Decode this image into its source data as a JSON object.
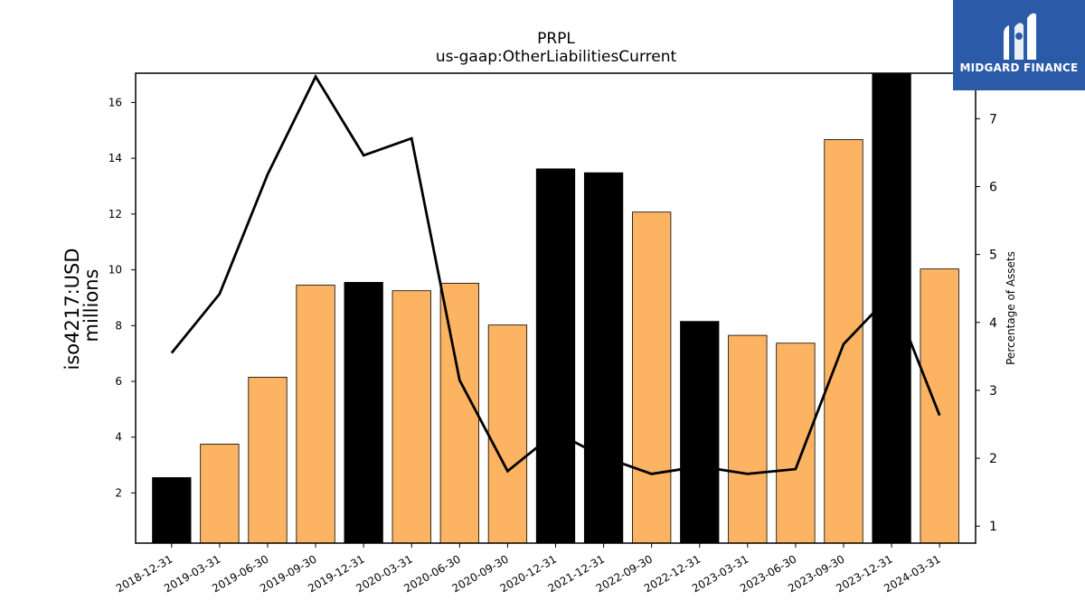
{
  "chart_data": {
    "type": "bar",
    "title": "PRPL",
    "subtitle": "us-gaap:OtherLiabilitiesCurrent",
    "ylabel": "iso4217:USD",
    "ylabel_unit": "millions",
    "y2label": "Percentage of Assets",
    "categories": [
      "2018-12-31",
      "2019-03-31",
      "2019-06-30",
      "2019-09-30",
      "2019-12-31",
      "2020-03-31",
      "2020-06-30",
      "2020-09-30",
      "2020-12-31",
      "2021-12-31",
      "2022-09-30",
      "2022-12-31",
      "2023-03-31",
      "2023-06-30",
      "2023-09-30",
      "2023-12-31",
      "2024-03-31"
    ],
    "values": [
      2.55,
      3.75,
      6.15,
      9.45,
      9.55,
      9.25,
      9.52,
      8.02,
      13.62,
      13.48,
      12.07,
      8.15,
      7.65,
      7.37,
      14.67,
      17.05,
      10.03
    ],
    "bar_colors": [
      "#000000",
      "#fdb462",
      "#fdb462",
      "#fdb462",
      "#000000",
      "#fdb462",
      "#fdb462",
      "#fdb462",
      "#000000",
      "#000000",
      "#fdb462",
      "#000000",
      "#fdb462",
      "#fdb462",
      "#fdb462",
      "#000000",
      "#fdb462"
    ],
    "line_values": [
      3.55,
      4.42,
      6.18,
      7.62,
      6.46,
      6.71,
      3.15,
      1.81,
      2.38,
      2.02,
      1.77,
      1.88,
      1.77,
      1.84,
      3.68,
      4.42,
      2.63
    ],
    "ylim": [
      0.2,
      17.05
    ],
    "y2lim": [
      0.75,
      7.67
    ],
    "yticks": [
      2,
      4,
      6,
      8,
      10,
      12,
      14,
      16
    ],
    "y2ticks": [
      1,
      2,
      3,
      4,
      5,
      6,
      7
    ],
    "grid": false,
    "legend": "none",
    "colors": {
      "accent": "#fdb462",
      "primary": "#000000",
      "line": "#000000"
    }
  },
  "logo": {
    "text": "MIDGARD FINANCE",
    "background": "#2b5aa8"
  }
}
